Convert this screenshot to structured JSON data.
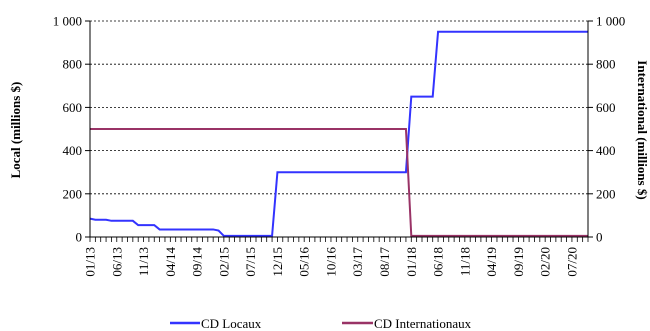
{
  "chart_data": {
    "type": "line",
    "title": "",
    "ylabel_left": "Local (millions $)",
    "ylabel_right": "International (millions $)",
    "ylim_left": [
      0,
      1000
    ],
    "ylim_right": [
      0,
      1000
    ],
    "y_ticks": [
      0,
      200,
      400,
      600,
      800,
      1000
    ],
    "y_tick_labels": [
      "0",
      "200",
      "400",
      "600",
      "800",
      "1 000"
    ],
    "x_range": [
      "2013-01",
      "2020-10"
    ],
    "x_tick_labels": [
      "01/13",
      "06/13",
      "11/13",
      "04/14",
      "09/14",
      "02/15",
      "07/15",
      "12/15",
      "05/16",
      "10/16",
      "03/17",
      "08/17",
      "01/18",
      "06/18",
      "11/18",
      "04/19",
      "09/19",
      "02/20",
      "07/20"
    ],
    "grid": "horizontal-dashed",
    "legend_position": "bottom",
    "series": [
      {
        "name": "CD Locaux",
        "axis": "left",
        "color": "#3333ff",
        "points": [
          [
            "2013-01",
            85
          ],
          [
            "2013-02",
            80
          ],
          [
            "2013-04",
            80
          ],
          [
            "2013-05",
            75
          ],
          [
            "2013-09",
            75
          ],
          [
            "2013-10",
            55
          ],
          [
            "2014-01",
            55
          ],
          [
            "2014-02",
            35
          ],
          [
            "2014-12",
            35
          ],
          [
            "2015-01",
            30
          ],
          [
            "2015-02",
            5
          ],
          [
            "2015-11",
            5
          ],
          [
            "2015-12",
            300
          ],
          [
            "2017-12",
            300
          ],
          [
            "2018-01",
            650
          ],
          [
            "2018-05",
            650
          ],
          [
            "2018-06",
            950
          ],
          [
            "2020-10",
            950
          ]
        ]
      },
      {
        "name": "CD Internationaux",
        "axis": "right",
        "color": "#993366",
        "points": [
          [
            "2013-01",
            500
          ],
          [
            "2017-12",
            500
          ],
          [
            "2018-01",
            5
          ],
          [
            "2020-10",
            5
          ]
        ]
      }
    ]
  }
}
